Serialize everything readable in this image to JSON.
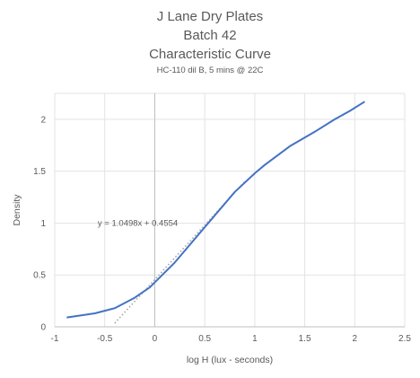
{
  "chart_data": {
    "type": "line",
    "title_lines": [
      "J Lane Dry Plates",
      "Batch 42",
      "Characteristic Curve"
    ],
    "subtitle": "HC-110 dil B, 5 mins @ 22C",
    "xlabel": "log H (lux - seconds)",
    "ylabel": "Density",
    "xlim": [
      -1,
      2.5
    ],
    "ylim": [
      0,
      2.25
    ],
    "xticks": [
      -1,
      -0.5,
      0,
      0.5,
      1,
      1.5,
      2,
      2.5
    ],
    "xtick_labels": [
      "-1",
      "-0.5",
      "0",
      "0.5",
      "1",
      "1.5",
      "2",
      "2.5"
    ],
    "yticks": [
      0,
      0.5,
      1,
      1.5,
      2
    ],
    "ytick_labels": [
      "0",
      "0.5",
      "1",
      "1.5",
      "2"
    ],
    "grid": "vertical and horizontal",
    "legend": "none",
    "series": [
      {
        "color": "#4472C4",
        "x": [
          -0.88,
          -0.6,
          -0.4,
          -0.2,
          -0.05,
          0.2,
          0.5,
          0.8,
          1.0,
          1.1,
          1.35,
          1.6,
          1.8,
          1.95,
          2.1
        ],
        "y": [
          0.09,
          0.13,
          0.18,
          0.28,
          0.38,
          0.62,
          0.96,
          1.3,
          1.48,
          1.56,
          1.74,
          1.88,
          2.0,
          2.08,
          2.17
        ]
      }
    ],
    "trendline": {
      "color": "#A6A6A6",
      "style": "dotted",
      "slope": 1.0498,
      "intercept": 0.4554,
      "x_range": [
        -0.4,
        0.9
      ],
      "label": "y = 1.0498x + 0.4554",
      "label_at": [
        -0.57,
        1.0
      ]
    }
  }
}
